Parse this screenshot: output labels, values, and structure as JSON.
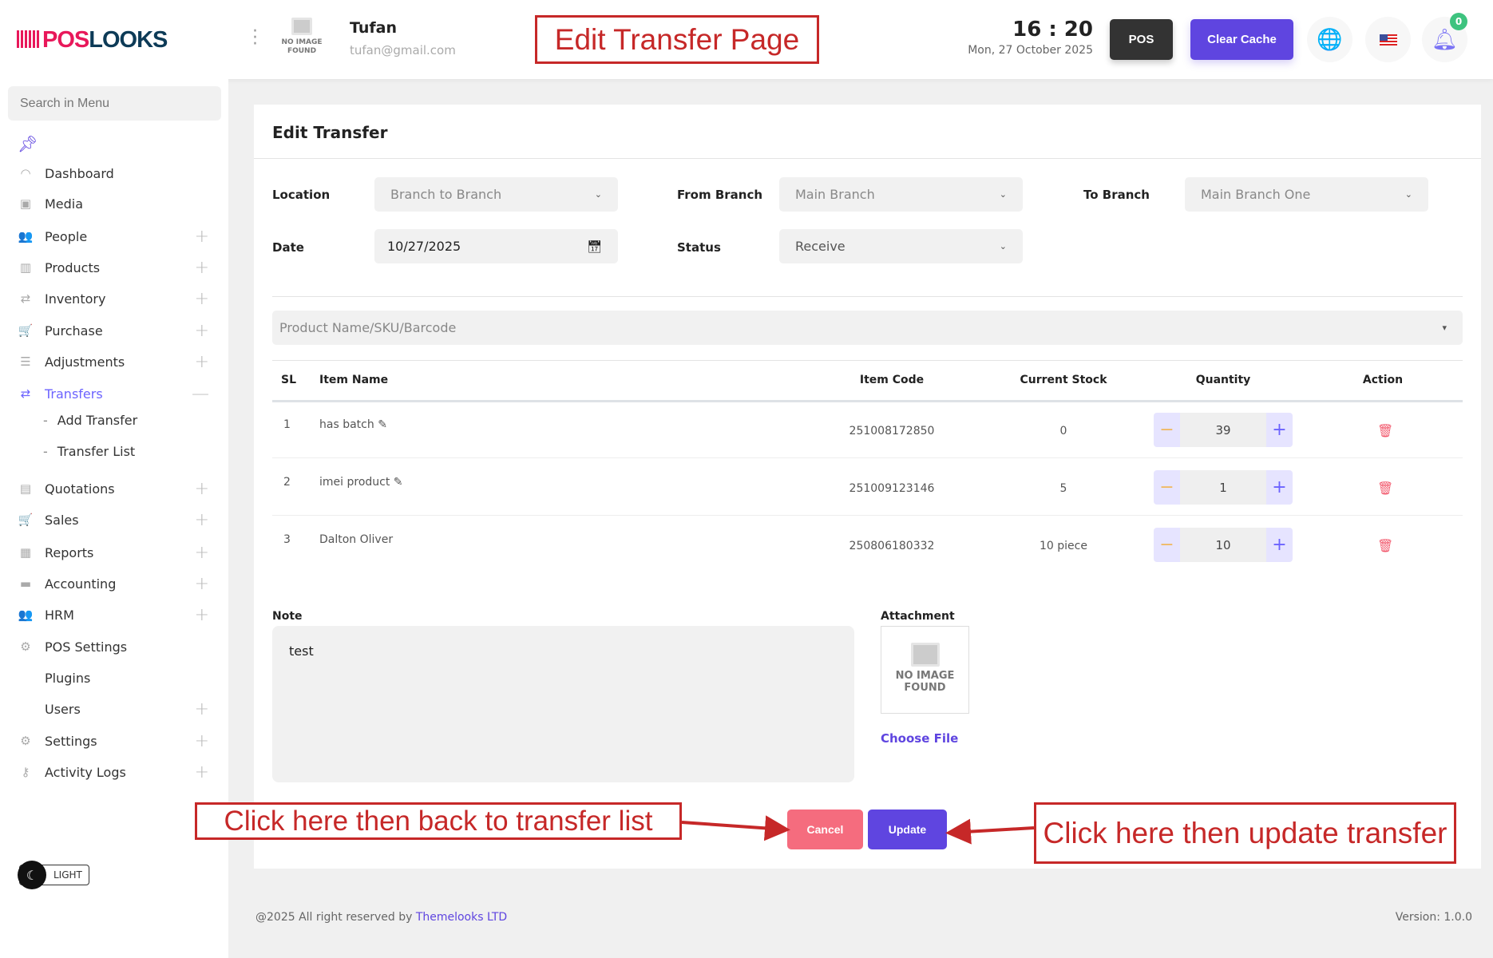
{
  "header": {
    "logo_text_a": "POS",
    "logo_text_b": "LOOKS",
    "avatar_text": "NO IMAGE FOUND",
    "user_name": "Tufan",
    "user_email": "tufan@gmail.com",
    "time": "16 : 20",
    "date": "Mon, 27 October 2025",
    "pos_label": "POS",
    "clear_cache_label": "Clear Cache",
    "notification_count": "0"
  },
  "sidebar": {
    "search_placeholder": "Search in Menu",
    "items": [
      {
        "label": "Dashboard",
        "icon": "◠",
        "expand": ""
      },
      {
        "label": "Media",
        "icon": "▣",
        "expand": ""
      },
      {
        "label": "People",
        "icon": "👥",
        "expand": "+"
      },
      {
        "label": "Products",
        "icon": "▥",
        "expand": "+"
      },
      {
        "label": "Inventory",
        "icon": "⇄",
        "expand": "+"
      },
      {
        "label": "Purchase",
        "icon": "🛒",
        "expand": "+"
      },
      {
        "label": "Adjustments",
        "icon": "☰",
        "expand": "+"
      },
      {
        "label": "Transfers",
        "icon": "⇄",
        "expand": "—"
      },
      {
        "label": "Quotations",
        "icon": "▤",
        "expand": "+"
      },
      {
        "label": "Sales",
        "icon": "🛒",
        "expand": "+"
      },
      {
        "label": "Reports",
        "icon": "▦",
        "expand": "+"
      },
      {
        "label": "Accounting",
        "icon": "▬",
        "expand": "+"
      },
      {
        "label": "HRM",
        "icon": "👥",
        "expand": "+"
      },
      {
        "label": "POS Settings",
        "icon": "⚙",
        "expand": ""
      },
      {
        "label": "Plugins",
        "icon": "",
        "expand": ""
      },
      {
        "label": "Users",
        "icon": "",
        "expand": "+"
      },
      {
        "label": "Settings",
        "icon": "⚙",
        "expand": "+"
      },
      {
        "label": "Activity Logs",
        "icon": "⚷",
        "expand": "+"
      }
    ],
    "subitems": [
      "Add Transfer",
      "Transfer List"
    ],
    "theme_label": "LIGHT"
  },
  "form": {
    "title": "Edit Transfer",
    "location_label": "Location",
    "location_value": "Branch to Branch",
    "from_label": "From Branch",
    "from_value": "Main Branch",
    "to_label": "To Branch",
    "to_value": "Main Branch One",
    "date_label": "Date",
    "date_value": "10/27/2025",
    "status_label": "Status",
    "status_value": "Receive",
    "product_placeholder": "Product Name/SKU/Barcode"
  },
  "table": {
    "headers": [
      "SL",
      "Item Name",
      "Item Code",
      "Current Stock",
      "Quantity",
      "Action"
    ],
    "rows": [
      {
        "sl": "1",
        "name": "has batch",
        "code": "251008172850",
        "stock": "0",
        "qty": "39",
        "editable": true
      },
      {
        "sl": "2",
        "name": "imei product",
        "code": "251009123146",
        "stock": "5",
        "qty": "1",
        "editable": true
      },
      {
        "sl": "3",
        "name": "Dalton Oliver",
        "code": "250806180332",
        "stock": "10 piece",
        "qty": "10",
        "editable": false
      }
    ]
  },
  "note": {
    "label": "Note",
    "value": "test"
  },
  "attachment": {
    "label": "Attachment",
    "placeholder": "NO IMAGE FOUND",
    "choose_label": "Choose File"
  },
  "actions": {
    "cancel": "Cancel",
    "update": "Update"
  },
  "footer": {
    "copyright": "@2025 All right reserved by ",
    "company": "Themelooks LTD",
    "version": "Version: 1.0.0"
  },
  "annotations": {
    "title": "Edit Transfer Page",
    "cancel_note": "Click here then back to transfer list",
    "update_note": "Click here then update transfer"
  },
  "colors": {
    "accent": "#6c63ff",
    "cancel": "#f56c7e",
    "annotation": "#c62828"
  }
}
